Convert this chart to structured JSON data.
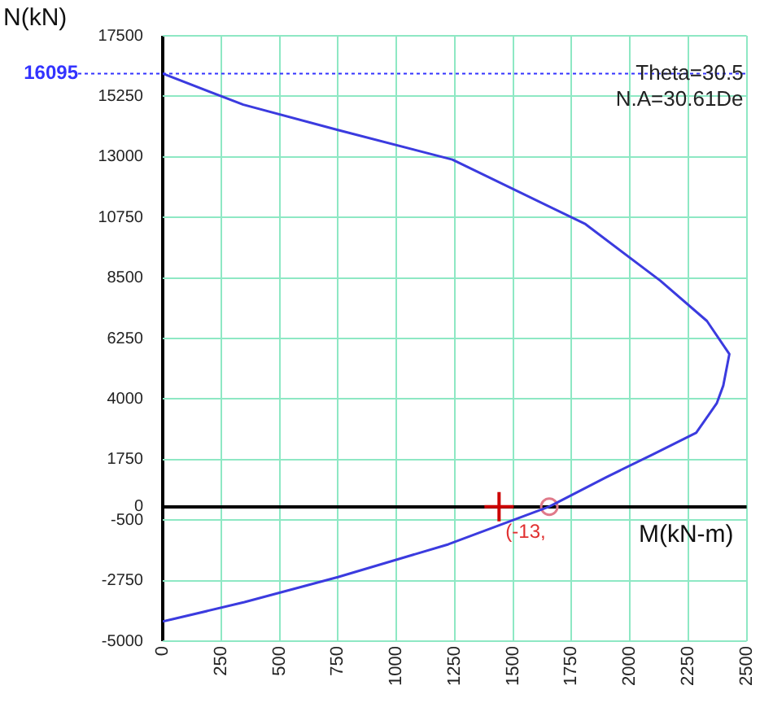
{
  "chart_data": {
    "type": "line",
    "xlabel": "M(kN-m)",
    "ylabel": "N(kN)",
    "xlim": [
      0,
      2500
    ],
    "ylim": [
      -5000,
      17500
    ],
    "xticks": [
      0,
      250,
      500,
      750,
      1000,
      1250,
      1500,
      1750,
      2000,
      2250,
      2500
    ],
    "yticks": [
      17500,
      15250,
      13000,
      10750,
      8500,
      6250,
      4000,
      1750,
      0,
      -500,
      -2750,
      -5000
    ],
    "grid": true,
    "legend": false,
    "line_style": "solid",
    "series": [
      {
        "color": "#3b3bdf",
        "marker": "none",
        "x": [
          0,
          345,
          750,
          1240,
          1810,
          2130,
          2330,
          2426,
          2400,
          2372,
          2284,
          2101,
          1900,
          1655,
          1223,
          750,
          350,
          0
        ],
        "values": [
          16095,
          14940,
          14000,
          12900,
          10500,
          8400,
          6900,
          5670,
          4500,
          3840,
          2744,
          1950,
          1100,
          0,
          -1400,
          -2620,
          -3550,
          -4270
        ]
      },
      {
        "type": "scatter",
        "color": "#cc0000",
        "marker": "cross",
        "x": [
          1440
        ],
        "values": [
          0
        ]
      },
      {
        "type": "scatter",
        "color": "#e07a8a",
        "marker": "circle",
        "x": [
          1655
        ],
        "values": [
          0
        ]
      }
    ],
    "ref_lines": [
      {
        "axis": "y",
        "value": 16095,
        "label": "16095",
        "color": "#3333ff",
        "line_style": "dotted"
      }
    ],
    "annotations": [
      "Theta=30.5",
      "N.A=30.61De",
      {
        "text": "(-13,",
        "x": 1440,
        "y": 0
      }
    ]
  }
}
